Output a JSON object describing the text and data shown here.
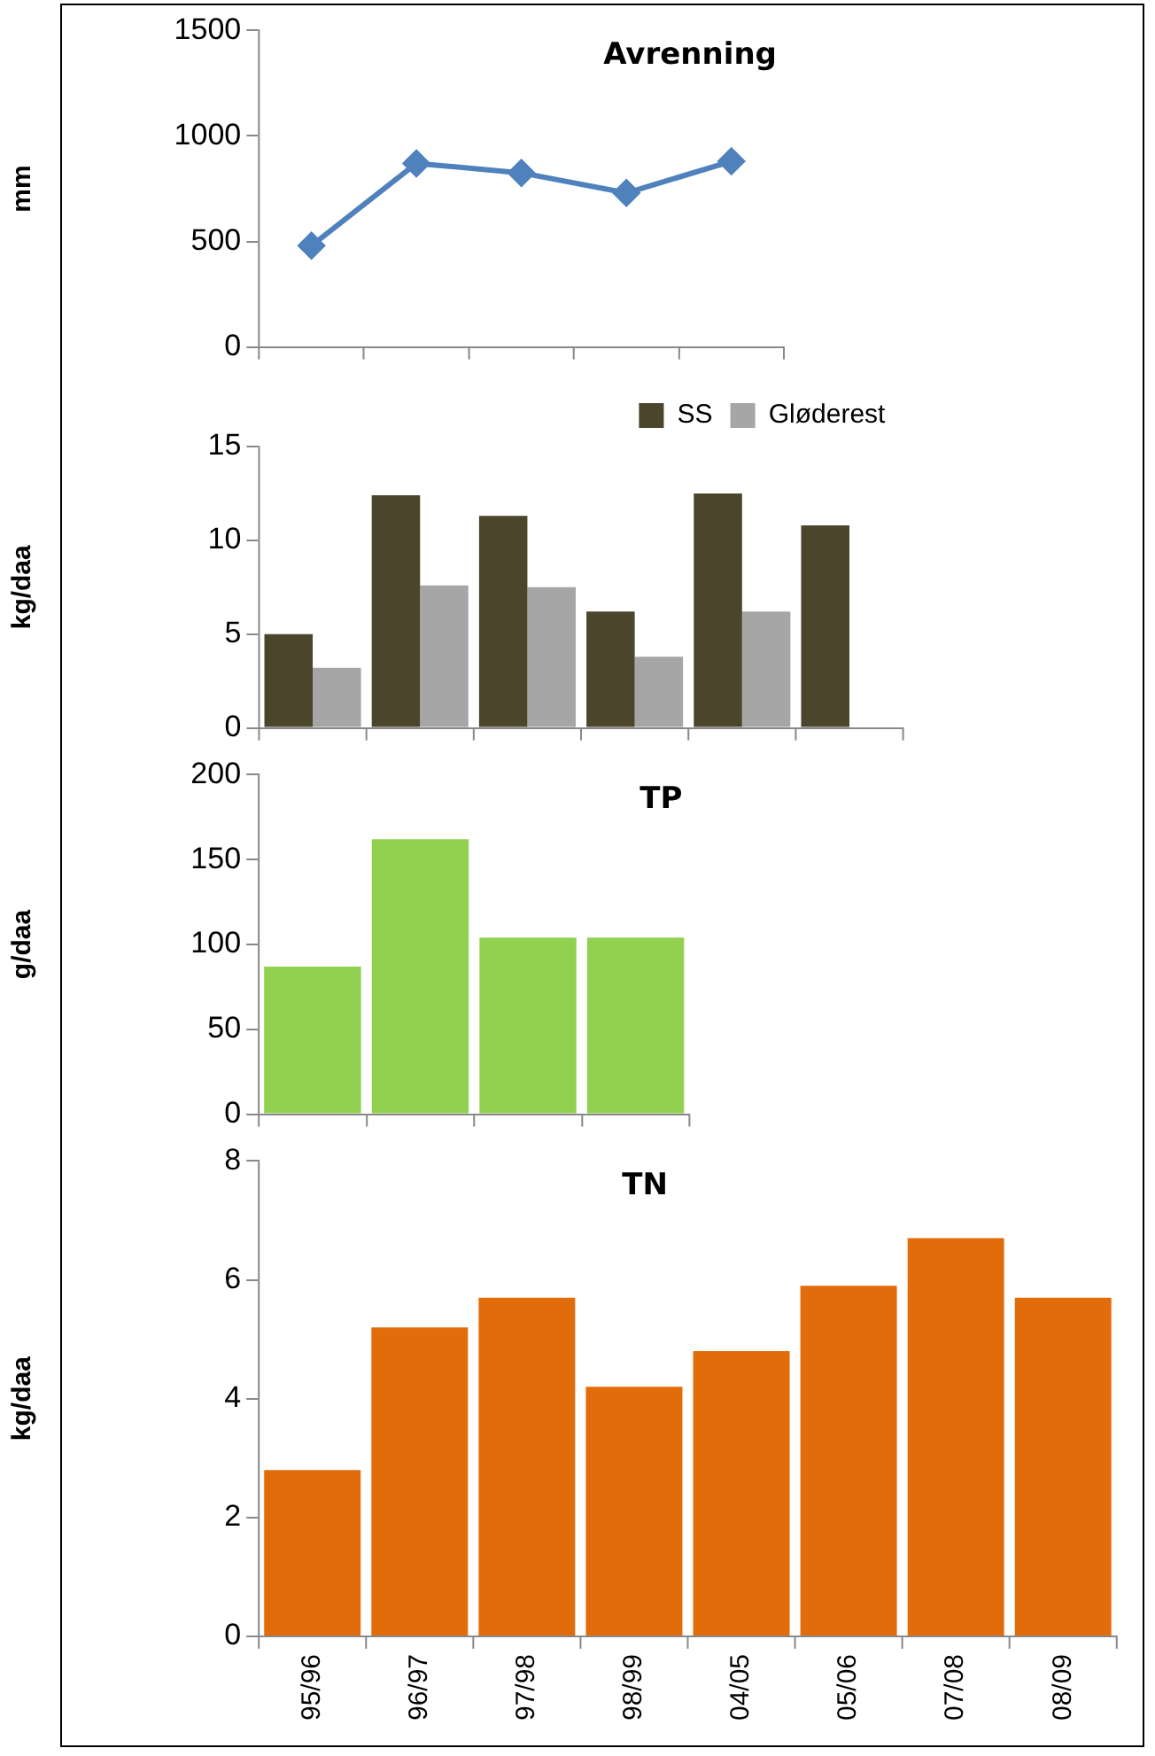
{
  "chart_data": [
    {
      "type": "line",
      "title": "Avrenning",
      "ylabel": "mm",
      "categories": [
        null,
        null,
        null,
        null,
        null
      ],
      "values": [
        480,
        870,
        825,
        730,
        880
      ],
      "color": "#4f81bd",
      "marker": "diamond",
      "line_style": "solid",
      "ylim": [
        0,
        1500
      ],
      "yticks": [
        0,
        500,
        1000,
        1500
      ],
      "grid": false,
      "tick_labels": "y"
    },
    {
      "type": "bar",
      "ylabel": "kg/daa",
      "categories": [
        null,
        null,
        null,
        null,
        null,
        null
      ],
      "series": [
        {
          "name": "SS",
          "color": "#4b452c",
          "values": [
            5.0,
            12.4,
            11.3,
            6.2,
            12.5,
            10.8
          ]
        },
        {
          "name": "Gløderest",
          "color": "#a6a6a6",
          "values": [
            3.2,
            7.6,
            7.5,
            3.8,
            6.2,
            null
          ]
        }
      ],
      "ylim": [
        0,
        15
      ],
      "yticks": [
        0,
        5,
        10,
        15
      ],
      "grid": false,
      "legend": "top right",
      "tick_labels": "y"
    },
    {
      "type": "bar",
      "title": "TP",
      "ylabel": "g/daa",
      "categories": [
        null,
        null,
        null,
        null
      ],
      "values": [
        87,
        162,
        104,
        104
      ],
      "color": "#92d050",
      "ylim": [
        0,
        200
      ],
      "yticks": [
        0,
        50,
        100,
        150,
        200
      ],
      "grid": false,
      "tick_labels": "y"
    },
    {
      "type": "bar",
      "title": "TN",
      "ylabel": "kg/daa",
      "categories": [
        "95/96",
        "96/97",
        "97/98",
        "98/99",
        "04/05",
        "05/06",
        "07/08",
        "08/09"
      ],
      "values": [
        2.8,
        5.2,
        5.7,
        4.2,
        4.8,
        5.9,
        6.7,
        5.7
      ],
      "color": "#e36c0a",
      "ylim": [
        0,
        8
      ],
      "yticks": [
        0,
        2,
        4,
        6,
        8
      ],
      "grid": false
    }
  ]
}
